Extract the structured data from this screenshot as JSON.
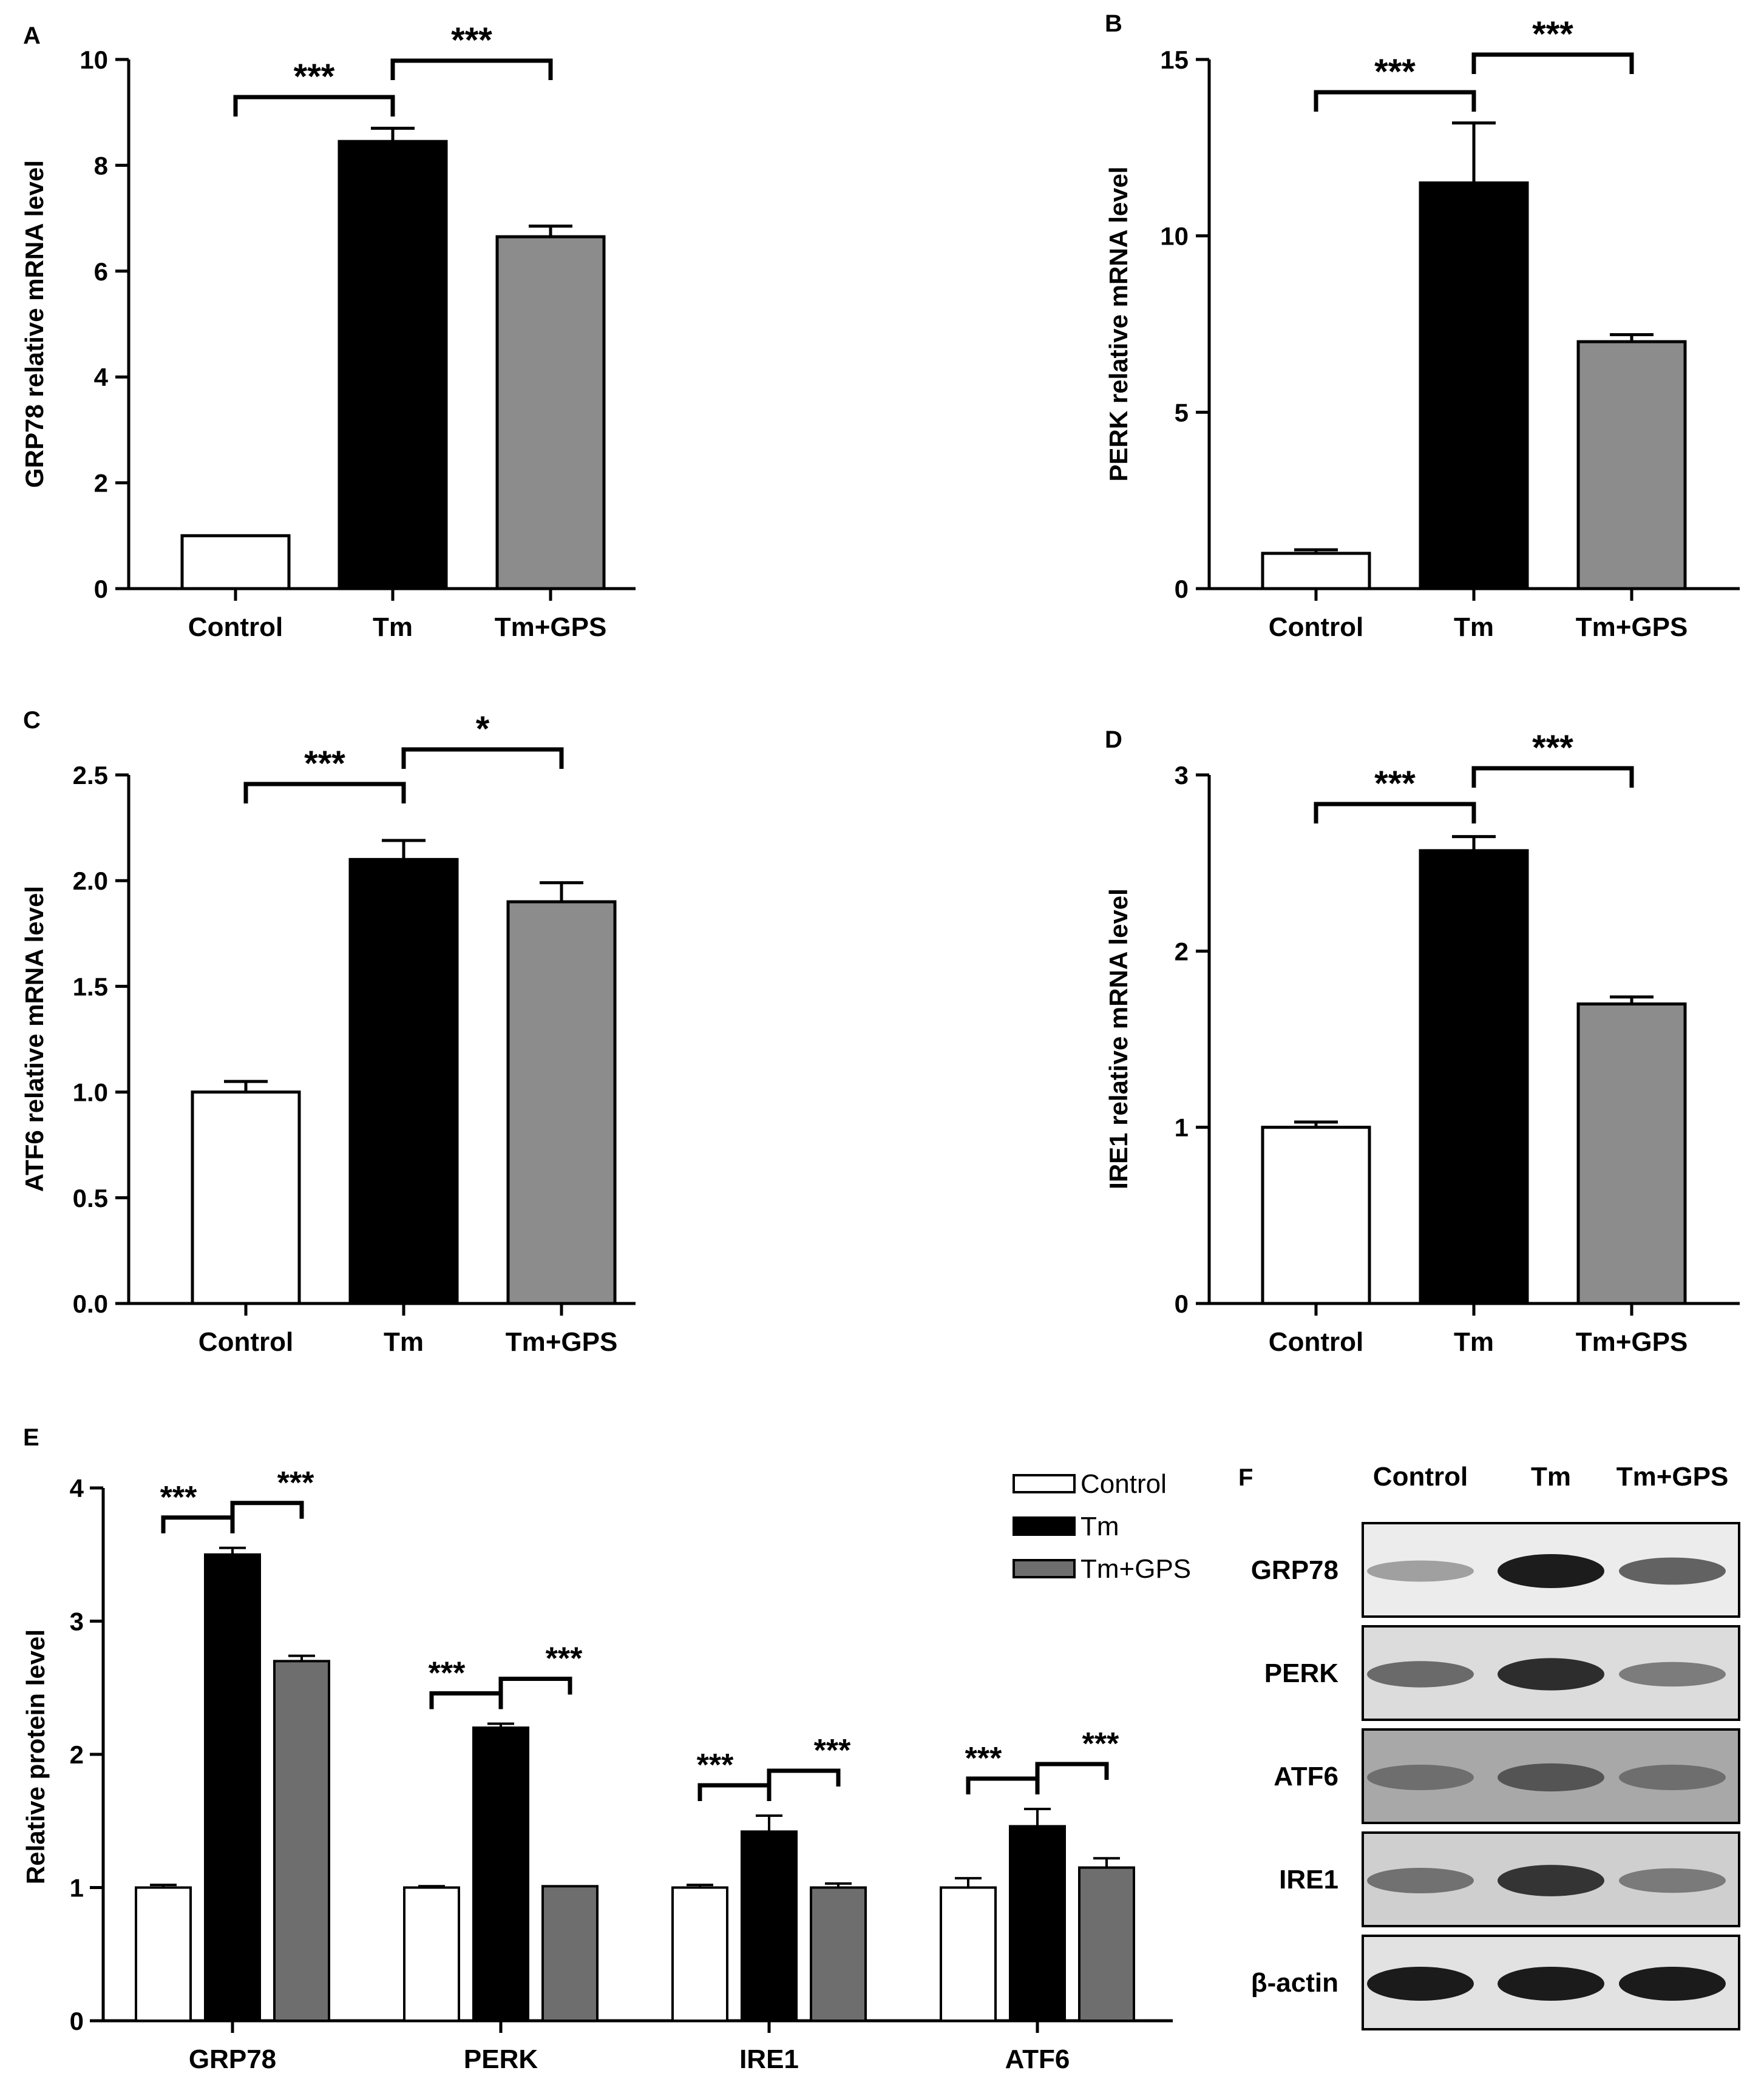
{
  "figure": {
    "panels": [
      "A",
      "B",
      "C",
      "D",
      "E",
      "F"
    ]
  },
  "colors": {
    "control": "#ffffff",
    "tm": "#000000",
    "tm_gps_light": "#8c8c8c",
    "tm_gps_dark": "#6e6e6e",
    "axis": "#000000"
  },
  "chart_data": [
    {
      "panel": "A",
      "type": "bar",
      "title": "",
      "categories": [
        "Control",
        "Tm",
        "Tm+GPS"
      ],
      "values": [
        1.0,
        8.45,
        6.65
      ],
      "errors": [
        0.0,
        0.25,
        0.2
      ],
      "xlabel": "",
      "ylabel": "GRP78 relative mRNA level",
      "ylim": [
        0,
        10
      ],
      "yticks": [
        0,
        2,
        4,
        6,
        8,
        10
      ],
      "ytick_labels": [
        "0",
        "2",
        "4",
        "6",
        "8",
        "10"
      ],
      "significance": [
        {
          "from": 0,
          "to": 1,
          "label": "***"
        },
        {
          "from": 1,
          "to": 2,
          "label": "***"
        }
      ]
    },
    {
      "panel": "B",
      "type": "bar",
      "title": "",
      "categories": [
        "Control",
        "Tm",
        "Tm+GPS"
      ],
      "values": [
        1.0,
        11.5,
        7.0
      ],
      "errors": [
        0.1,
        1.7,
        0.2
      ],
      "xlabel": "",
      "ylabel": "PERK relative mRNA level",
      "ylim": [
        0,
        15
      ],
      "yticks": [
        0,
        5,
        10,
        15
      ],
      "ytick_labels": [
        "0",
        "5",
        "10",
        "15"
      ],
      "significance": [
        {
          "from": 0,
          "to": 1,
          "label": "***"
        },
        {
          "from": 1,
          "to": 2,
          "label": "***"
        }
      ]
    },
    {
      "panel": "C",
      "type": "bar",
      "title": "",
      "categories": [
        "Control",
        "Tm",
        "Tm+GPS"
      ],
      "values": [
        1.0,
        2.1,
        1.9
      ],
      "errors": [
        0.05,
        0.09,
        0.09
      ],
      "xlabel": "",
      "ylabel": "ATF6 relative mRNA level",
      "ylim": [
        0,
        2.5
      ],
      "yticks": [
        0,
        0.5,
        1.0,
        1.5,
        2.0,
        2.5
      ],
      "ytick_labels": [
        "0.0",
        "0.5",
        "1.0",
        "1.5",
        "2.0",
        "2.5"
      ],
      "significance": [
        {
          "from": 0,
          "to": 1,
          "label": "***"
        },
        {
          "from": 1,
          "to": 2,
          "label": "*"
        }
      ]
    },
    {
      "panel": "D",
      "type": "bar",
      "title": "",
      "categories": [
        "Control",
        "Tm",
        "Tm+GPS"
      ],
      "values": [
        1.0,
        2.57,
        1.7
      ],
      "errors": [
        0.03,
        0.08,
        0.04
      ],
      "xlabel": "",
      "ylabel": "IRE1 relative mRNA level",
      "ylim": [
        0,
        3
      ],
      "yticks": [
        0,
        1,
        2,
        3
      ],
      "ytick_labels": [
        "0",
        "1",
        "2",
        "3"
      ],
      "significance": [
        {
          "from": 0,
          "to": 1,
          "label": "***"
        },
        {
          "from": 1,
          "to": 2,
          "label": "***"
        }
      ]
    },
    {
      "panel": "E",
      "type": "bar",
      "title": "",
      "categories": [
        "GRP78",
        "PERK",
        "IRE1",
        "ATF6"
      ],
      "series": [
        {
          "name": "Control",
          "values": [
            1.0,
            1.0,
            1.0,
            1.0
          ],
          "errors": [
            0.02,
            0.01,
            0.02,
            0.07
          ]
        },
        {
          "name": "Tm",
          "values": [
            3.5,
            2.2,
            1.42,
            1.46
          ],
          "errors": [
            0.05,
            0.03,
            0.12,
            0.13
          ]
        },
        {
          "name": "Tm+GPS",
          "values": [
            2.7,
            1.01,
            1.0,
            1.15
          ],
          "errors": [
            0.04,
            0.0,
            0.03,
            0.07
          ]
        }
      ],
      "xlabel": "",
      "ylabel": "Relative protein level",
      "ylim": [
        0,
        4
      ],
      "yticks": [
        0,
        1,
        2,
        3,
        4
      ],
      "ytick_labels": [
        "0",
        "1",
        "2",
        "3",
        "4"
      ],
      "legend": [
        "Control",
        "Tm",
        "Tm+GPS"
      ],
      "legend_position": "top-right",
      "significance": [
        {
          "group": 0,
          "pairs": [
            "***",
            "***"
          ]
        },
        {
          "group": 1,
          "pairs": [
            "***",
            "***"
          ]
        },
        {
          "group": 2,
          "pairs": [
            "***",
            "***"
          ]
        },
        {
          "group": 3,
          "pairs": [
            "***",
            "***"
          ]
        }
      ]
    }
  ],
  "western_blot": {
    "panel": "F",
    "columns": [
      "Control",
      "Tm",
      "Tm+GPS"
    ],
    "rows": [
      {
        "label": "GRP78",
        "intensities": [
          0.25,
          1.0,
          0.6
        ]
      },
      {
        "label": "PERK",
        "intensities": [
          0.55,
          0.9,
          0.45
        ]
      },
      {
        "label": "ATF6",
        "intensities": [
          0.5,
          0.65,
          0.5
        ]
      },
      {
        "label": "IRE1",
        "intensities": [
          0.5,
          0.85,
          0.45
        ]
      },
      {
        "label": "β-actin",
        "intensities": [
          1.0,
          1.0,
          1.0
        ]
      }
    ]
  }
}
